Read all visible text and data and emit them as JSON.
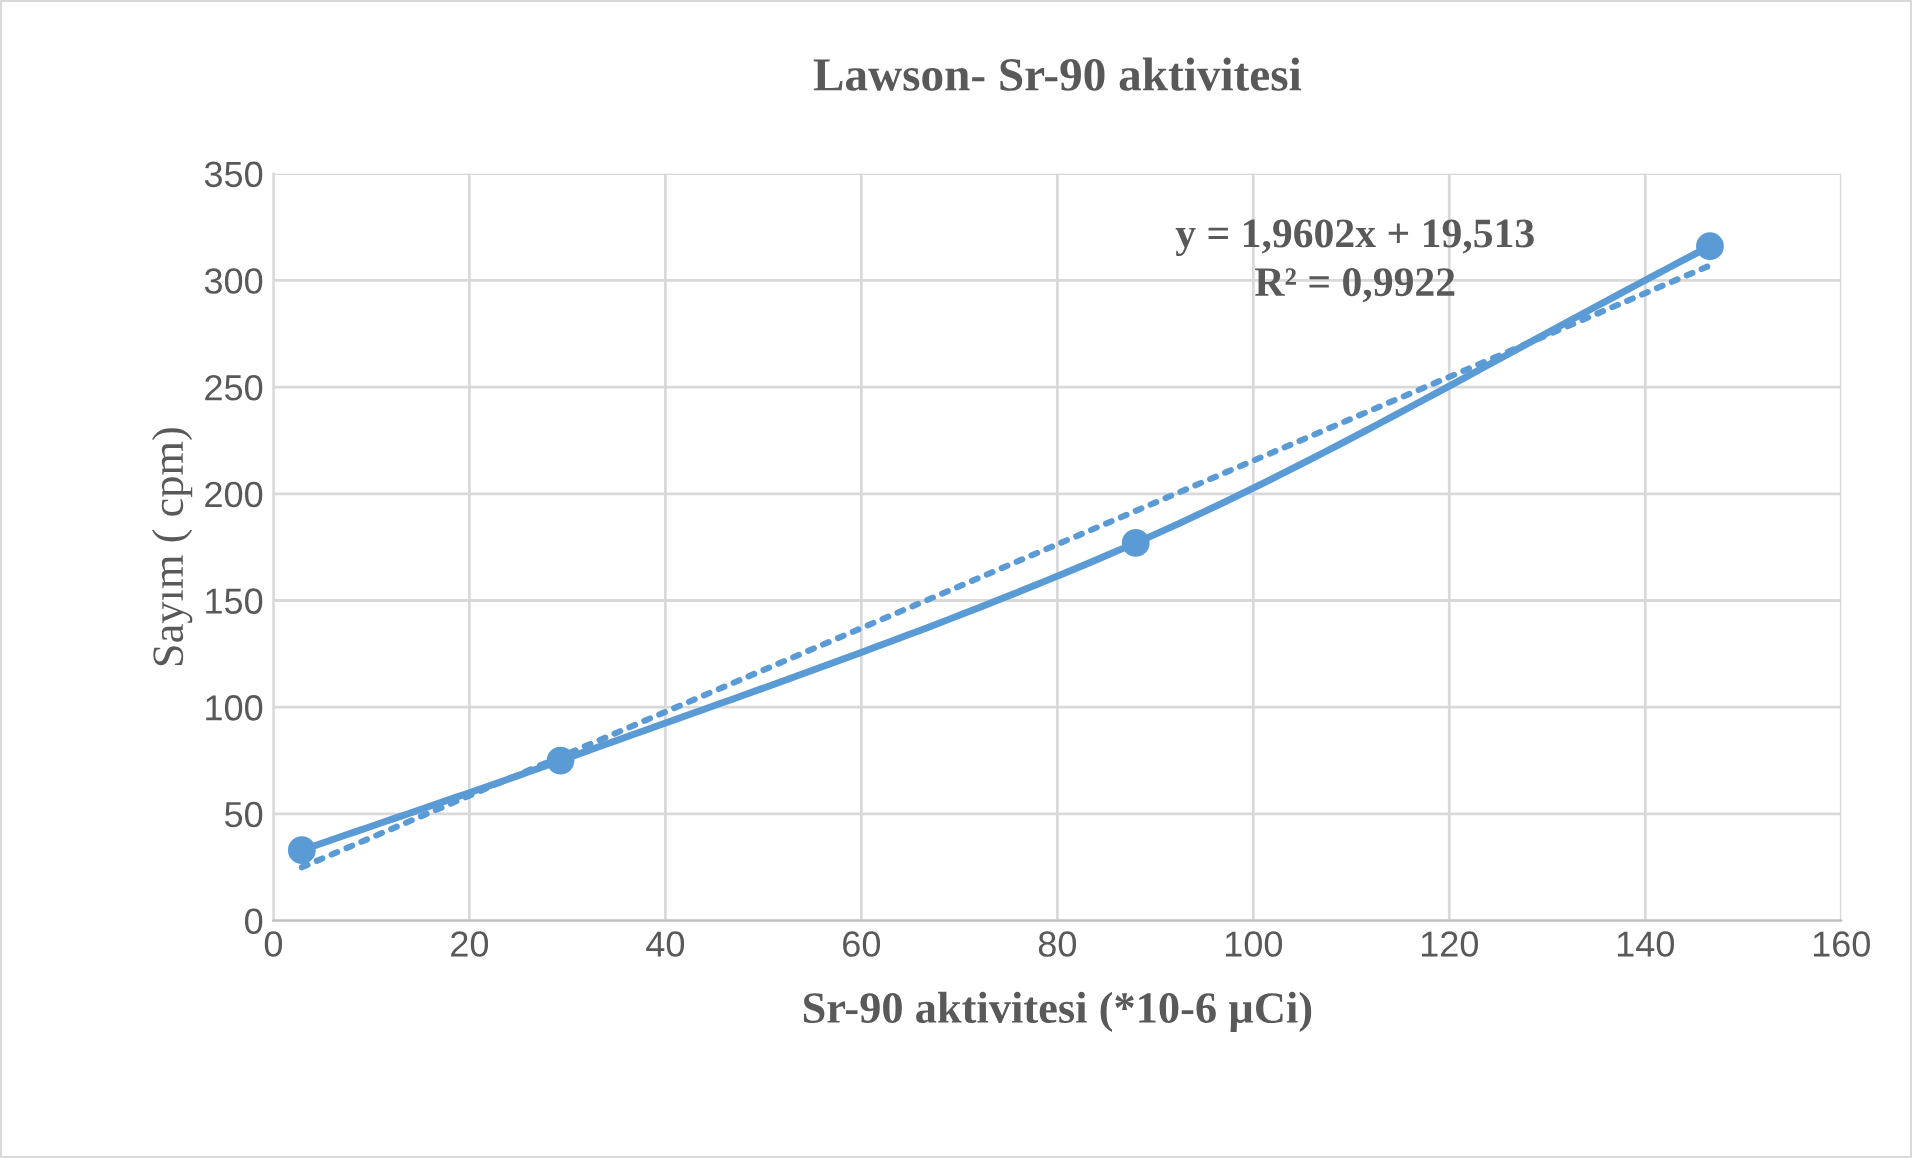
{
  "chart_data": {
    "type": "line",
    "title": "Lawson- Sr-90 aktivitesi",
    "xlabel": "Sr-90 aktivitesi (*10-6 µCi)",
    "ylabel": "Sayım ( cpm)",
    "series": [
      {
        "color": "#5b9bd5",
        "marker": "circle",
        "line_style": "solid",
        "x": [
          2.9,
          29.3,
          88,
          146.6
        ],
        "values": [
          33,
          75,
          177,
          316
        ]
      },
      {
        "color": "#5b9bd5",
        "marker": "none",
        "line_style": "dotted",
        "x": [
          2.9,
          146.6
        ],
        "values": [
          25,
          307
        ]
      }
    ],
    "annotations": [
      "y = 1,9602x + 19,513",
      "R² = 0,9922"
    ],
    "xlim": [
      0,
      160
    ],
    "xticks": [
      0,
      20,
      40,
      60,
      80,
      100,
      120,
      140,
      160
    ],
    "ylim": [
      0,
      350
    ],
    "yticks": [
      0,
      50,
      100,
      150,
      200,
      250,
      300,
      350
    ],
    "grid": true,
    "legend": false
  }
}
